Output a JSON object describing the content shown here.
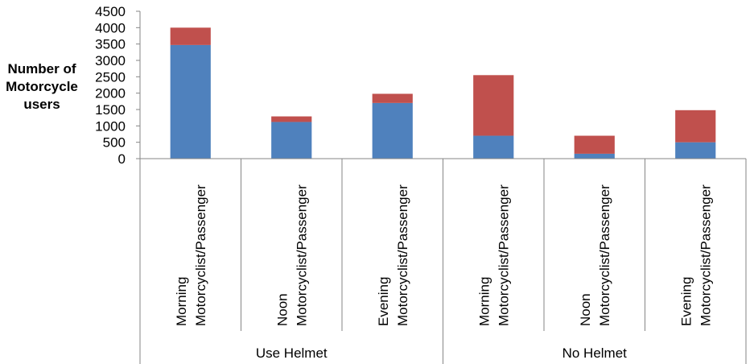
{
  "chart_data": {
    "type": "bar",
    "stacked": true,
    "ylabel": [
      "Number of",
      "Motorcycle",
      "users"
    ],
    "ylim": [
      0,
      4500
    ],
    "yticks": [
      0,
      500,
      1000,
      1500,
      2000,
      2500,
      3000,
      3500,
      4000,
      4500
    ],
    "grid": false,
    "groups": [
      {
        "label": "Use Helmet",
        "categories": [
          [
            "Morning",
            "Motorcyclist/Passenger"
          ],
          [
            "Noon",
            "Motorcyclist/Passenger"
          ],
          [
            "Evening",
            "Motorcyclist/Passenger"
          ]
        ]
      },
      {
        "label": "No Helmet",
        "categories": [
          [
            "Morning",
            "Motorcyclist/Passenger"
          ],
          [
            "Noon",
            "Motorcyclist/Passenger"
          ],
          [
            "Evening",
            "Motorcyclist/Passenger"
          ]
        ]
      }
    ],
    "series": [
      {
        "color": "#4f81bd",
        "values": [
          3470,
          1120,
          1700,
          700,
          150,
          500
        ]
      },
      {
        "color": "#c0504d",
        "values": [
          530,
          170,
          280,
          1850,
          550,
          980
        ]
      }
    ]
  }
}
